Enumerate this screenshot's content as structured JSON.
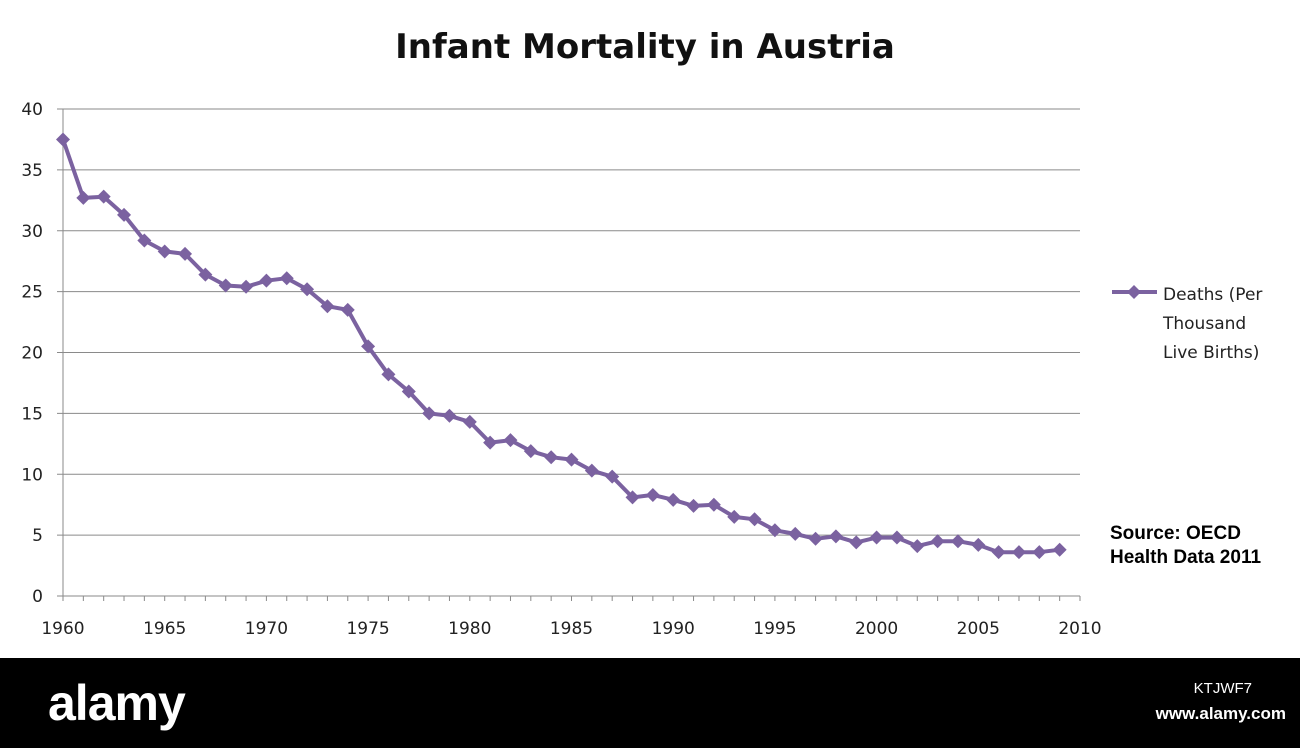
{
  "chart_data": {
    "type": "line",
    "title": "Infant Mortality in Austria",
    "xlabel": "",
    "ylabel": "",
    "xlim": [
      1960,
      2010
    ],
    "ylim": [
      0,
      40
    ],
    "x_ticks": [
      "1960",
      "1965",
      "1970",
      "1975",
      "1980",
      "1985",
      "1990",
      "1995",
      "2000",
      "2005",
      "2010"
    ],
    "y_ticks": [
      "0",
      "5",
      "10",
      "15",
      "20",
      "25",
      "30",
      "35",
      "40"
    ],
    "grid": true,
    "legend_position": "right",
    "series": [
      {
        "name": "Deaths (Per Thousand Live Births)",
        "legend_lines": [
          "Deaths (Per",
          "Thousand",
          "Live Births)"
        ],
        "color": "#7b62a0",
        "marker": "diamond",
        "x": [
          1960,
          1961,
          1962,
          1963,
          1964,
          1965,
          1966,
          1967,
          1968,
          1969,
          1970,
          1971,
          1972,
          1973,
          1974,
          1975,
          1976,
          1977,
          1978,
          1979,
          1980,
          1981,
          1982,
          1983,
          1984,
          1985,
          1986,
          1987,
          1988,
          1989,
          1990,
          1991,
          1992,
          1993,
          1994,
          1995,
          1996,
          1997,
          1998,
          1999,
          2000,
          2001,
          2002,
          2003,
          2004,
          2005,
          2006,
          2007,
          2008,
          2009
        ],
        "y": [
          37.5,
          32.7,
          32.8,
          31.3,
          29.2,
          28.3,
          28.1,
          26.4,
          25.5,
          25.4,
          25.9,
          26.1,
          25.2,
          23.8,
          23.5,
          20.5,
          18.2,
          16.8,
          15.0,
          14.8,
          14.3,
          12.6,
          12.8,
          11.9,
          11.4,
          11.2,
          10.3,
          9.8,
          8.1,
          8.3,
          7.9,
          7.4,
          7.5,
          6.5,
          6.3,
          5.4,
          5.1,
          4.7,
          4.9,
          4.4,
          4.8,
          4.8,
          4.1,
          4.5,
          4.5,
          4.2,
          3.6,
          3.6,
          3.6,
          3.8
        ]
      }
    ],
    "annotations": [
      "Source: OECD",
      "Health Data 2011"
    ]
  },
  "watermark": {
    "logo": "alamy",
    "image_id": "KTJWF7",
    "url": "www.alamy.com"
  }
}
